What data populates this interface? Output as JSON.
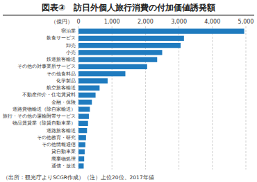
{
  "chart_data": {
    "type": "bar",
    "orientation": "horizontal",
    "title": "図表③　訪日外個人旅行消費の付加価値誘発額",
    "xlabel": "（億円）",
    "annotations": [
      "（出所：観光庁よりSCGR作成）（注）上位20位、2017年値"
    ],
    "categories": [
      "宿泊業",
      "飲食サービス",
      "卸売",
      "小売",
      "鉄道旅客輸送",
      "その他の対事業所サービス",
      "その他食料品",
      "化学製品",
      "航空旅客輸送",
      "不動産仲介・住宅賃貸料",
      "金融・保険",
      "道路貨物輸送（除自家輸送）",
      "旅行・その他の運輸附帯サービス",
      "物品賃貸業（除貸自動車業）",
      "道路旅客輸送",
      "その他教育・研究",
      "その他情報通信",
      "貸自動車業",
      "廃棄物処理",
      "通信・放送"
    ],
    "values": [
      4950,
      3150,
      3050,
      2500,
      2350,
      2050,
      1400,
      870,
      630,
      510,
      400,
      340,
      310,
      285,
      255,
      225,
      205,
      185,
      170,
      155
    ],
    "color": "#1f7bbf",
    "xlim": [
      0,
      5000
    ],
    "xticks": [
      0,
      {
        "value": 1000,
        "label": "1,000"
      },
      {
        "value": 2000,
        "label": "2,000"
      },
      {
        "value": 3000,
        "label": "3,000"
      },
      {
        "value": 4000,
        "label": "4,000"
      },
      {
        "value": 5000,
        "label": "5,000"
      }
    ],
    "grid": true
  }
}
